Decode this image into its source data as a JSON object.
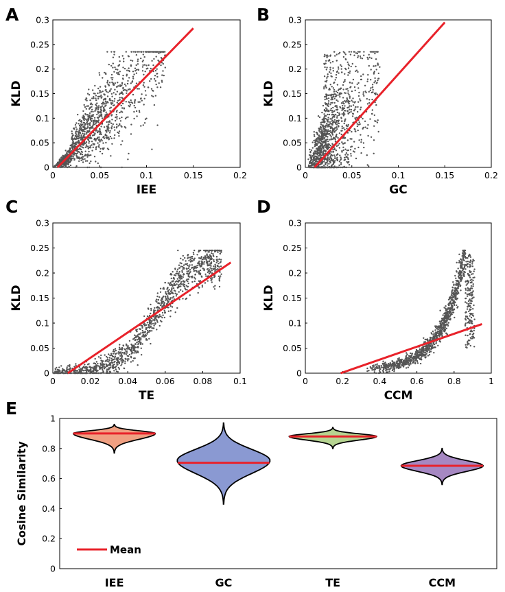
{
  "chart_data": [
    {
      "id": "A",
      "panel": "A",
      "type": "scatter",
      "xlabel": "IEE",
      "ylabel": "KLD",
      "xlim": [
        0,
        0.2
      ],
      "ylim": [
        0,
        0.3
      ],
      "xticks": [
        "0",
        "0.05",
        "0.1",
        "0.15",
        "0.2"
      ],
      "yticks": [
        "0",
        "0.05",
        "0.1",
        "0.15",
        "0.2",
        "0.25",
        "0.3"
      ],
      "point_color": "#555555",
      "fit_color": "#e8222a",
      "fit_line": {
        "x": [
          0.005,
          0.15
        ],
        "y": [
          0.0,
          0.283
        ]
      },
      "point_cloud": {
        "count": 1300,
        "x_max": 0.12,
        "shape": "linear-spread",
        "slope": 2.0,
        "spread": 0.05,
        "y_cap": 0.235
      }
    },
    {
      "id": "B",
      "panel": "B",
      "type": "scatter",
      "xlabel": "GC",
      "ylabel": "KLD",
      "xlim": [
        0,
        0.2
      ],
      "ylim": [
        0,
        0.3
      ],
      "xticks": [
        "0",
        "0.05",
        "0.1",
        "0.15",
        "0.2"
      ],
      "yticks": [
        "0",
        "0.05",
        "0.1",
        "0.15",
        "0.2",
        "0.25",
        "0.3"
      ],
      "point_color": "#555555",
      "fit_color": "#e8222a",
      "fit_line": {
        "x": [
          0.01,
          0.15
        ],
        "y": [
          0.0,
          0.295
        ]
      },
      "point_cloud": {
        "count": 1300,
        "x_max": 0.1,
        "shape": "wide-spread",
        "y_cap": 0.235
      }
    },
    {
      "id": "C",
      "panel": "C",
      "type": "scatter",
      "xlabel": "TE",
      "ylabel": "KLD",
      "xlim": [
        0,
        0.1
      ],
      "ylim": [
        0,
        0.3
      ],
      "xticks": [
        "0",
        "0.02",
        "0.04",
        "0.06",
        "0.08",
        "0.1"
      ],
      "yticks": [
        "0",
        "0.05",
        "0.1",
        "0.15",
        "0.2",
        "0.25",
        "0.3"
      ],
      "point_color": "#555555",
      "fit_color": "#e8222a",
      "fit_line": {
        "x": [
          0.008,
          0.095
        ],
        "y": [
          0.0,
          0.221
        ]
      },
      "point_cloud": {
        "count": 1300,
        "x_max": 0.09,
        "shape": "sigmoid",
        "y_cap": 0.245
      }
    },
    {
      "id": "D",
      "panel": "D",
      "type": "scatter",
      "xlabel": "CCM",
      "ylabel": "KLD",
      "xlim": [
        0,
        1
      ],
      "ylim": [
        0,
        0.3
      ],
      "xticks": [
        "0",
        "0.2",
        "0.4",
        "0.6",
        "0.8",
        "1"
      ],
      "yticks": [
        "0",
        "0.05",
        "0.1",
        "0.15",
        "0.2",
        "0.25",
        "0.3"
      ],
      "point_color": "#555555",
      "fit_color": "#e8222a",
      "fit_line": {
        "x": [
          0.19,
          0.95
        ],
        "y": [
          0.0,
          0.098
        ]
      },
      "point_cloud": {
        "count": 1300,
        "x_max": 0.91,
        "shape": "exponential",
        "y_cap": 0.245
      }
    },
    {
      "id": "E",
      "panel": "E",
      "type": "violin",
      "ylabel": "Cosine Similarity",
      "ylim": [
        0,
        1
      ],
      "yticks": [
        "0",
        "0.2",
        "0.4",
        "0.6",
        "0.8",
        "1"
      ],
      "categories": [
        "IEE",
        "GC",
        "TE",
        "CCM"
      ],
      "means": [
        0.9,
        0.705,
        0.88,
        0.685
      ],
      "ranges": [
        [
          0.77,
          0.96
        ],
        [
          0.43,
          0.97
        ],
        [
          0.8,
          0.94
        ],
        [
          0.56,
          0.8
        ]
      ],
      "max_density_at": [
        0.9,
        0.72,
        0.88,
        0.685
      ],
      "relative_width": [
        0.75,
        0.85,
        0.8,
        0.75
      ],
      "fills": [
        "#f0a082",
        "#8a99d2",
        "#b6d491",
        "#a688c2"
      ],
      "mean_color": "#e8222a",
      "legend": {
        "label": "Mean",
        "placement": "bottom-left"
      }
    }
  ]
}
